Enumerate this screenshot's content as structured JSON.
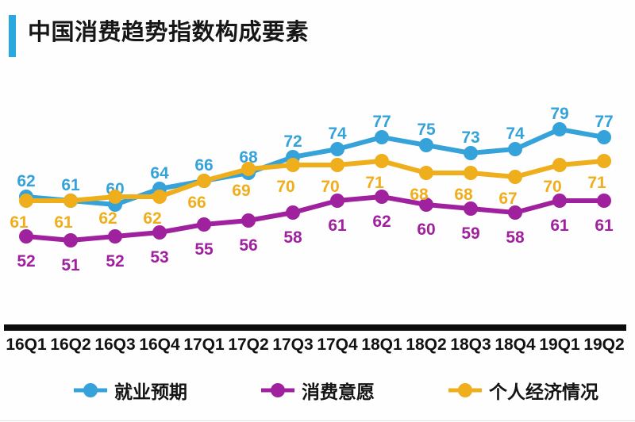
{
  "title": "中国消费趋势指数构成要素",
  "accent_color": "#29a8df",
  "chart_data": {
    "type": "line",
    "title": "中国消费趋势指数构成要素",
    "categories": [
      "16Q1",
      "16Q2",
      "16Q3",
      "16Q4",
      "17Q1",
      "17Q2",
      "17Q3",
      "17Q4",
      "18Q1",
      "18Q2",
      "18Q3",
      "18Q4",
      "19Q1",
      "19Q2"
    ],
    "series": [
      {
        "name": "就业预期",
        "color": "#35a3d9",
        "values": [
          62,
          61,
          60,
          64,
          66,
          68,
          72,
          74,
          77,
          75,
          73,
          74,
          79,
          77
        ],
        "label_position": "above"
      },
      {
        "name": "消费意愿",
        "color": "#a0219e",
        "values": [
          52,
          51,
          52,
          53,
          55,
          56,
          58,
          61,
          62,
          60,
          59,
          58,
          61,
          61
        ],
        "label_position": "below"
      },
      {
        "name": "个人经济情况",
        "color": "#efae1c",
        "values": [
          61,
          61,
          62,
          62,
          66,
          69,
          70,
          70,
          71,
          68,
          68,
          67,
          70,
          71
        ],
        "label_position": "below"
      }
    ],
    "point_labels_shown": true,
    "grid": false,
    "y_axis_shown": false,
    "ylim": [
      46,
      92
    ],
    "axis_color": "#0d0d0d",
    "tick_label_color": "#121212",
    "legend_position": "bottom"
  }
}
